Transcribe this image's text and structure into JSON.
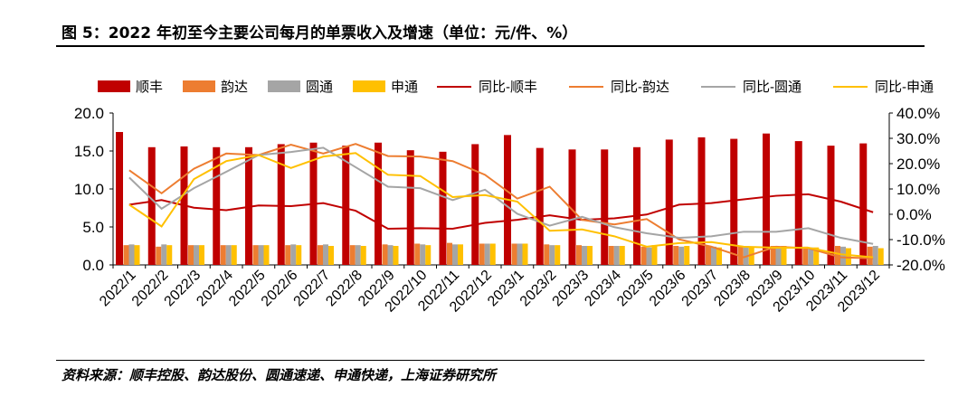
{
  "title": "图 5：2022 年初至今主要公司每月的单票收入及增速（单位：元/件、%）",
  "source": "资料来源：顺丰控股、韵达股份、圆通速递、申通快递，上海证券研究所",
  "chart_data": {
    "type": "bar+line",
    "categories": [
      "2022/1",
      "2022/2",
      "2022/3",
      "2022/4",
      "2022/5",
      "2022/6",
      "2022/7",
      "2022/8",
      "2022/9",
      "2022/10",
      "2022/11",
      "2022/12",
      "2023/1",
      "2023/2",
      "2023/3",
      "2023/4",
      "2023/5",
      "2023/6",
      "2023/7",
      "2023/8",
      "2023/9",
      "2023/10",
      "2023/11",
      "2023/12"
    ],
    "y_left": {
      "range": [
        0,
        20
      ],
      "ticks": [
        "0.0",
        "5.0",
        "10.0",
        "15.0",
        "20.0"
      ]
    },
    "y_right": {
      "range": [
        -20,
        40
      ],
      "ticks": [
        "-20.0%",
        "-10.0%",
        "0.0%",
        "10.0%",
        "20.0%",
        "30.0%",
        "40.0%"
      ]
    },
    "legend_position": "top",
    "grid": false,
    "bar_series": [
      {
        "name": "顺丰",
        "color": "#C00000",
        "values": [
          17.5,
          15.5,
          15.6,
          15.5,
          15.5,
          15.9,
          16.1,
          15.7,
          16.1,
          15.1,
          14.9,
          15.9,
          17.1,
          15.4,
          15.2,
          15.2,
          15.5,
          16.5,
          16.8,
          16.6,
          17.3,
          16.3,
          15.7,
          16.0
        ]
      },
      {
        "name": "韵达",
        "color": "#ED7D31",
        "values": [
          2.6,
          2.4,
          2.6,
          2.6,
          2.6,
          2.6,
          2.6,
          2.6,
          2.7,
          2.8,
          2.9,
          2.8,
          2.8,
          2.7,
          2.6,
          2.5,
          2.4,
          2.5,
          2.5,
          2.4,
          2.5,
          2.4,
          2.5,
          2.4
        ]
      },
      {
        "name": "圆通",
        "color": "#A5A5A5",
        "values": [
          2.7,
          2.7,
          2.6,
          2.6,
          2.6,
          2.7,
          2.7,
          2.6,
          2.6,
          2.7,
          2.7,
          2.8,
          2.8,
          2.6,
          2.5,
          2.5,
          2.3,
          2.4,
          2.4,
          2.4,
          2.3,
          2.3,
          2.4,
          2.5
        ]
      },
      {
        "name": "申通",
        "color": "#FFC000",
        "values": [
          2.6,
          2.6,
          2.6,
          2.6,
          2.6,
          2.6,
          2.5,
          2.5,
          2.5,
          2.6,
          2.7,
          2.8,
          2.8,
          2.6,
          2.5,
          2.5,
          2.6,
          2.5,
          2.3,
          2.3,
          2.5,
          2.3,
          2.2,
          2.2
        ]
      }
    ],
    "line_series": [
      {
        "name": "同比-顺丰",
        "color": "#C00000",
        "values": [
          3.8,
          5.6,
          2.6,
          1.6,
          3.5,
          3.2,
          4.4,
          1.4,
          -5.7,
          -5.5,
          -5.7,
          -3.4,
          -2.2,
          -0.4,
          -2.2,
          -1.6,
          -0.1,
          3.8,
          4.4,
          5.9,
          7.3,
          7.9,
          5.0,
          0.8
        ]
      },
      {
        "name": "同比-韵达",
        "color": "#ED7D31",
        "values": [
          17.4,
          8.3,
          18.0,
          24.0,
          23.4,
          27.5,
          24.0,
          27.8,
          23.0,
          22.8,
          21.0,
          15.6,
          6.2,
          10.9,
          -2.2,
          -4.0,
          -1.9,
          -9.9,
          -12.8,
          -17.0,
          -12.8,
          -13.4,
          -17.0,
          -17.4
        ]
      },
      {
        "name": "同比-圆通",
        "color": "#A5A5A5",
        "values": [
          14.5,
          2.2,
          10.3,
          16.8,
          23.4,
          24.6,
          26.3,
          18.6,
          10.9,
          10.3,
          5.6,
          9.7,
          0.2,
          -4.5,
          -1.0,
          -5.1,
          -7.5,
          -9.3,
          -8.7,
          -6.9,
          -6.9,
          -5.5,
          -9.3,
          -11.7
        ]
      },
      {
        "name": "同比-申通",
        "color": "#FFC000",
        "values": [
          3.8,
          -4.8,
          13.9,
          21.0,
          23.4,
          18.3,
          22.8,
          24.2,
          15.6,
          15.1,
          6.8,
          7.6,
          5.0,
          -6.5,
          -6.0,
          -8.7,
          -12.8,
          -11.4,
          -11.0,
          -12.8,
          -13.2,
          -13.2,
          -15.8,
          -17.0
        ]
      }
    ]
  }
}
